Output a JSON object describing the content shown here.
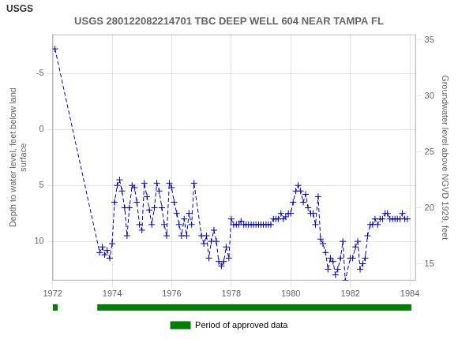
{
  "chart_data": {
    "type": "line",
    "title": "USGS 280122082214701 TBC DEEP WELL 604 NEAR TAMPA FL",
    "annotations": [
      "USGS"
    ],
    "ylabel": "Depth to water level, feet below land\nsurface",
    "y2label": "Groundwater level above NGVD 1929, feet",
    "x": [
      1972.08,
      1973.58,
      1973.67,
      1973.75,
      1973.83,
      1973.92,
      1974.0,
      1974.08,
      1974.17,
      1974.25,
      1974.33,
      1974.42,
      1974.5,
      1974.58,
      1974.67,
      1974.75,
      1974.83,
      1974.92,
      1975.0,
      1975.08,
      1975.17,
      1975.25,
      1975.33,
      1975.42,
      1975.5,
      1975.58,
      1975.67,
      1975.75,
      1975.83,
      1975.92,
      1976.0,
      1976.08,
      1976.17,
      1976.25,
      1976.33,
      1976.42,
      1976.5,
      1976.58,
      1976.67,
      1976.75,
      1977.0,
      1977.08,
      1977.17,
      1977.25,
      1977.33,
      1977.42,
      1977.5,
      1977.58,
      1977.67,
      1977.75,
      1977.83,
      1977.92,
      1978.0,
      1978.08,
      1978.17,
      1978.25,
      1978.33,
      1978.42,
      1978.5,
      1978.58,
      1978.67,
      1978.75,
      1978.83,
      1978.92,
      1979.0,
      1979.08,
      1979.17,
      1979.25,
      1979.33,
      1979.42,
      1979.5,
      1979.58,
      1979.67,
      1979.75,
      1979.83,
      1979.92,
      1980.0,
      1980.08,
      1980.17,
      1980.25,
      1980.33,
      1980.42,
      1980.5,
      1980.58,
      1980.67,
      1980.75,
      1980.83,
      1980.92,
      1981.0,
      1981.08,
      1981.17,
      1981.25,
      1981.33,
      1981.42,
      1981.5,
      1981.58,
      1981.67,
      1981.75,
      1981.83,
      1982.0,
      1982.08,
      1982.17,
      1982.25,
      1982.33,
      1982.42,
      1982.5,
      1982.58,
      1982.67,
      1982.75,
      1982.83,
      1982.92,
      1983.0,
      1983.08,
      1983.17,
      1983.25,
      1983.33,
      1983.42,
      1983.5,
      1983.58,
      1983.67,
      1983.75,
      1983.83,
      1983.92
    ],
    "series": [
      {
        "color": "#0000cc",
        "marker": "plus",
        "line_style": "dashed",
        "values": [
          -7.2,
          11.0,
          10.5,
          11.2,
          10.8,
          11.5,
          10.2,
          6.5,
          5.0,
          4.5,
          5.5,
          7.0,
          9.5,
          7.0,
          5.0,
          5.2,
          6.5,
          8.5,
          9.0,
          4.8,
          6.0,
          7.2,
          8.5,
          7.0,
          4.8,
          5.5,
          7.0,
          8.5,
          9.5,
          4.8,
          5.2,
          6.5,
          7.5,
          8.5,
          9.5,
          8.0,
          9.5,
          7.5,
          8.5,
          4.8,
          9.5,
          10.2,
          9.5,
          11.5,
          10.0,
          9.0,
          10.0,
          11.8,
          12.2,
          11.8,
          10.5,
          11.5,
          8.0,
          8.5,
          8.5,
          8.5,
          8.2,
          8.5,
          8.5,
          8.5,
          8.5,
          8.5,
          8.5,
          8.5,
          8.5,
          8.5,
          8.5,
          8.5,
          8.5,
          8.0,
          8.0,
          8.0,
          7.5,
          8.0,
          7.8,
          7.5,
          7.5,
          6.5,
          5.5,
          5.0,
          5.5,
          6.5,
          5.8,
          7.0,
          7.5,
          7.5,
          8.5,
          6.0,
          9.8,
          10.2,
          11.0,
          12.5,
          11.5,
          11.8,
          13.0,
          12.5,
          11.5,
          10.0,
          13.5,
          11.5,
          11.5,
          10.5,
          10.0,
          12.5,
          12.0,
          11.5,
          9.5,
          8.5,
          8.5,
          8.0,
          8.5,
          8.0,
          8.0,
          7.5,
          7.5,
          8.0,
          8.0,
          8.0,
          8.0,
          8.0,
          7.5,
          8.0,
          8.0
        ]
      }
    ],
    "xlim": [
      1972,
      1984.2
    ],
    "xticks": [
      1972,
      1974,
      1976,
      1978,
      1980,
      1982,
      1984
    ],
    "ylim": [
      13.5,
      -8.5
    ],
    "yticks": [
      -5,
      0,
      5,
      10
    ],
    "y2lim": [
      13.5,
      35.5
    ],
    "y2ticks": [
      15,
      20,
      25,
      30,
      35
    ],
    "grid": true,
    "legend": "bottom",
    "approved_periods": {
      "name": "Period of approved data",
      "color": "#008000",
      "segments": [
        [
          1972.0,
          1972.17
        ],
        [
          1973.5,
          1984.05
        ]
      ]
    }
  }
}
